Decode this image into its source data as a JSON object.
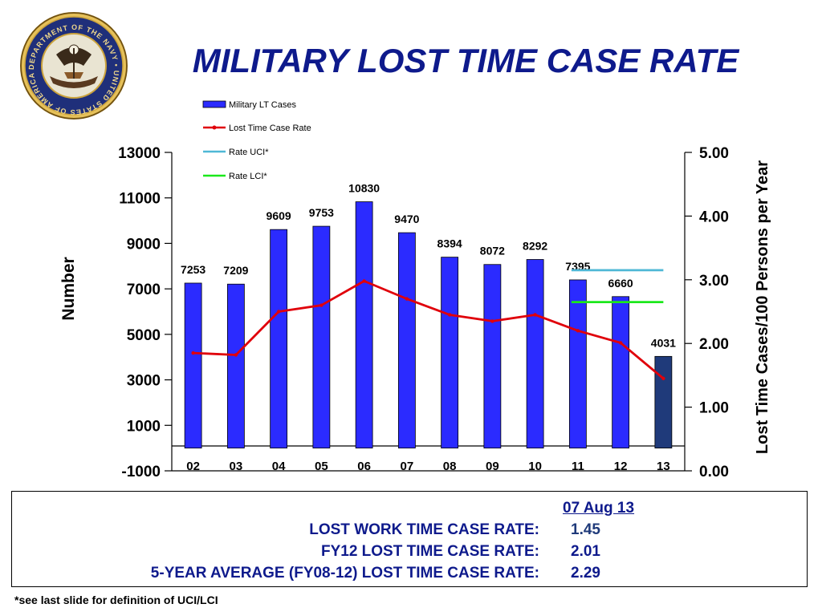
{
  "slide": {
    "title": "MILITARY LOST TIME CASE RATE",
    "footnote": "*see last slide for definition of UCI/LCI",
    "logo_icon": "department-of-the-navy-seal-icon",
    "seal_text": "DEPARTMENT OF THE NAVY • UNITED STATES OF AMERICA"
  },
  "summary": {
    "date_label": "07 Aug 13",
    "rows": [
      {
        "label": "LOST WORK TIME CASE RATE:",
        "value": "1.45"
      },
      {
        "label": "FY12 LOST TIME CASE RATE:",
        "value": "2.01"
      },
      {
        "label": "5-YEAR AVERAGE (FY08-12) LOST TIME CASE RATE:",
        "value": "2.29"
      }
    ]
  },
  "colors": {
    "bar": "#2b2bff",
    "bar_current": "#1f3a7a",
    "rate_line": "#e0000a",
    "uci": "#4fb8d6",
    "lci": "#1be81b",
    "title": "#0e1a8c"
  },
  "chart_data": {
    "type": "bar",
    "categories": [
      "02",
      "03",
      "04",
      "05",
      "06",
      "07",
      "08",
      "09",
      "10",
      "11",
      "12",
      "13"
    ],
    "ylabel": "Number",
    "y2label": "Lost Time Cases/100 Persons per Year",
    "ylim": [
      -1000,
      13000
    ],
    "yticks": [
      "13000",
      "11000",
      "9000",
      "7000",
      "5000",
      "3000",
      "1000",
      "-1000"
    ],
    "y2lim": [
      0,
      5
    ],
    "y2ticks": [
      "5.00",
      "4.00",
      "3.00",
      "2.00",
      "1.00",
      "0.00"
    ],
    "legend_position": "top-center",
    "series": [
      {
        "name": "Military LT Cases",
        "kind": "bar",
        "values": [
          7253,
          7209,
          9609,
          9753,
          10830,
          9470,
          8394,
          8072,
          8292,
          7395,
          6660,
          4031
        ],
        "labels": [
          "7253",
          "7209",
          "9609",
          "9753",
          "10830",
          "9470",
          "8394",
          "8072",
          "8292",
          "7395",
          "6660",
          "4031"
        ]
      },
      {
        "name": "Lost Time Case Rate",
        "kind": "line",
        "axis": "right",
        "values": [
          1.85,
          1.82,
          2.5,
          2.6,
          2.98,
          2.7,
          2.45,
          2.35,
          2.45,
          2.2,
          2.01,
          1.45
        ]
      },
      {
        "name": "Rate UCI*",
        "kind": "line",
        "axis": "right",
        "x": [
          "11",
          "13"
        ],
        "values": [
          3.15,
          3.15
        ]
      },
      {
        "name": "Rate LCI*",
        "kind": "line",
        "axis": "right",
        "x": [
          "11",
          "13"
        ],
        "values": [
          2.65,
          2.65
        ]
      }
    ]
  }
}
